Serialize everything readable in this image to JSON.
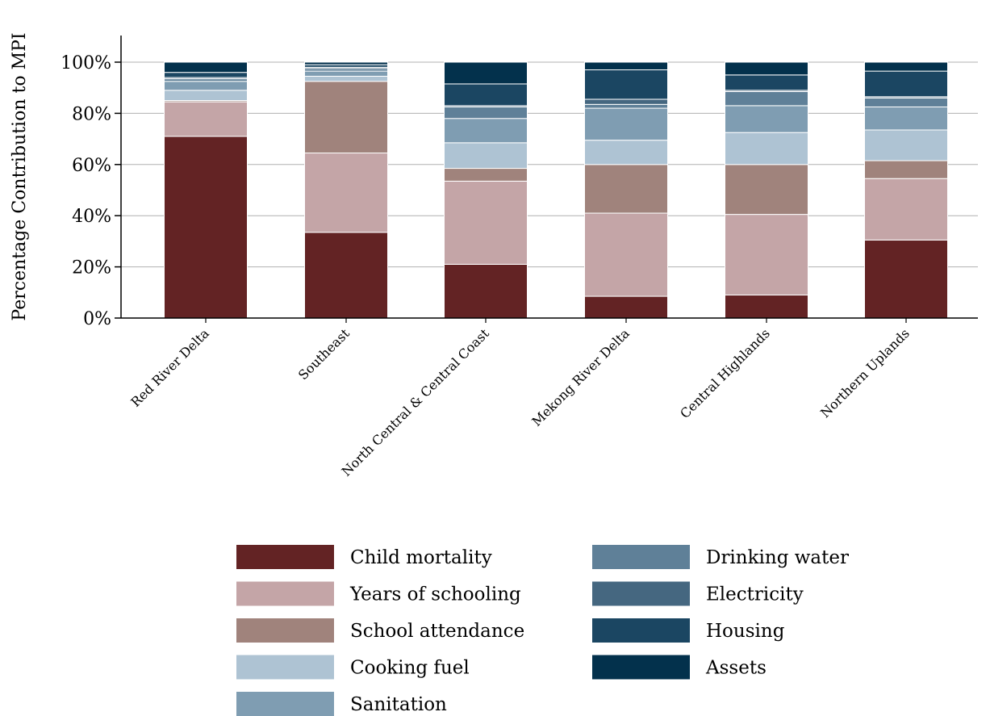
{
  "chart_data": {
    "type": "bar",
    "stacked": true,
    "title": "",
    "xlabel": "",
    "ylabel": "Percentage Contribution to MPI",
    "ylim": [
      0,
      110
    ],
    "yticks": [
      0,
      20,
      40,
      60,
      80,
      100
    ],
    "ytick_labels": [
      "0%",
      "20%",
      "40%",
      "60%",
      "80%",
      "100%"
    ],
    "grid": "horizontal",
    "legend_position": "bottom-center",
    "categories": [
      "Red River Delta",
      "Southeast",
      "North Central & Central Coast",
      "Mekong River Delta",
      "Central Highlands",
      "Northern Uplands"
    ],
    "series": [
      {
        "name": "Child mortality",
        "color": "#632324",
        "values": [
          71,
          33.5,
          21,
          8.5,
          9,
          30.5
        ]
      },
      {
        "name": "Years of schooling",
        "color": "#c4a5a7",
        "values": [
          13.5,
          31,
          32.5,
          32.5,
          31.5,
          24
        ]
      },
      {
        "name": "School attendance",
        "color": "#a0837c",
        "values": [
          0.5,
          28,
          5,
          19,
          19.5,
          7
        ]
      },
      {
        "name": "Cooking fuel",
        "color": "#aec3d3",
        "values": [
          4,
          2,
          10,
          9.5,
          12.5,
          12
        ]
      },
      {
        "name": "Sanitation",
        "color": "#7f9db2",
        "values": [
          3.5,
          2,
          9.5,
          12.5,
          10.5,
          9
        ]
      },
      {
        "name": "Drinking water",
        "color": "#5f8098",
        "values": [
          1,
          1,
          4.5,
          1.5,
          5.5,
          3.5
        ]
      },
      {
        "name": "Electricity",
        "color": "#456780",
        "values": [
          0.5,
          0.5,
          0.5,
          2,
          0.5,
          0.5
        ]
      },
      {
        "name": "Housing",
        "color": "#1b4662",
        "values": [
          2,
          1,
          8.5,
          11.5,
          6,
          10
        ]
      },
      {
        "name": "Assets",
        "color": "#03314c",
        "values": [
          4,
          1,
          8.5,
          3,
          5,
          3.5
        ]
      }
    ]
  }
}
